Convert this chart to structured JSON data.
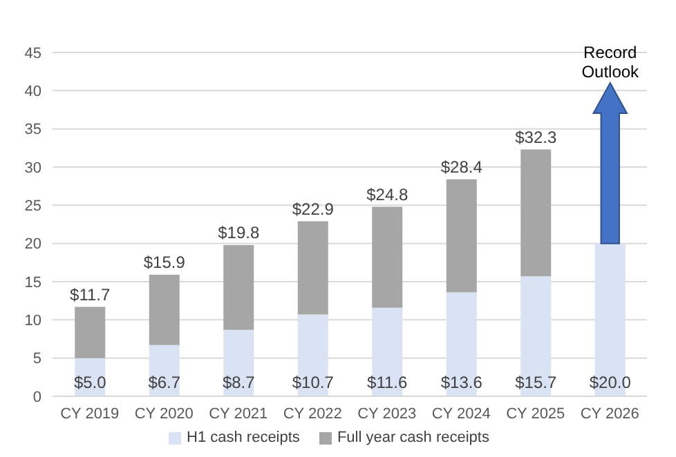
{
  "chart_data": {
    "type": "bar",
    "stacked": true,
    "categories": [
      "CY 2019",
      "CY 2020",
      "CY 2021",
      "CY 2022",
      "CY 2023",
      "CY 2024",
      "CY 2025",
      "CY 2026"
    ],
    "series": [
      {
        "name": "H1 cash receipts",
        "color": "#dae3f3",
        "values": [
          5.0,
          6.7,
          8.7,
          10.7,
          11.6,
          13.6,
          15.7,
          20.0
        ],
        "value_labels": [
          "$5.0",
          "$6.7",
          "$8.7",
          "$10.7",
          "$11.6",
          "$13.6",
          "$15.7",
          "$20.0"
        ]
      },
      {
        "name": "Full year cash receipts",
        "color": "#a6a6a6",
        "values": [
          6.7,
          9.2,
          11.1,
          12.2,
          13.2,
          14.8,
          16.6,
          null
        ]
      }
    ],
    "totals": [
      "$11.7",
      "$15.9",
      "$19.8",
      "$22.9",
      "$24.8",
      "$28.4",
      "$32.3",
      null
    ],
    "annotations": [
      "Record Outlook"
    ],
    "ylim": [
      0,
      45
    ],
    "yticks": [
      0,
      5,
      10,
      15,
      20,
      25,
      30,
      35,
      40,
      45
    ],
    "grid": "y",
    "legend": "bottom"
  }
}
